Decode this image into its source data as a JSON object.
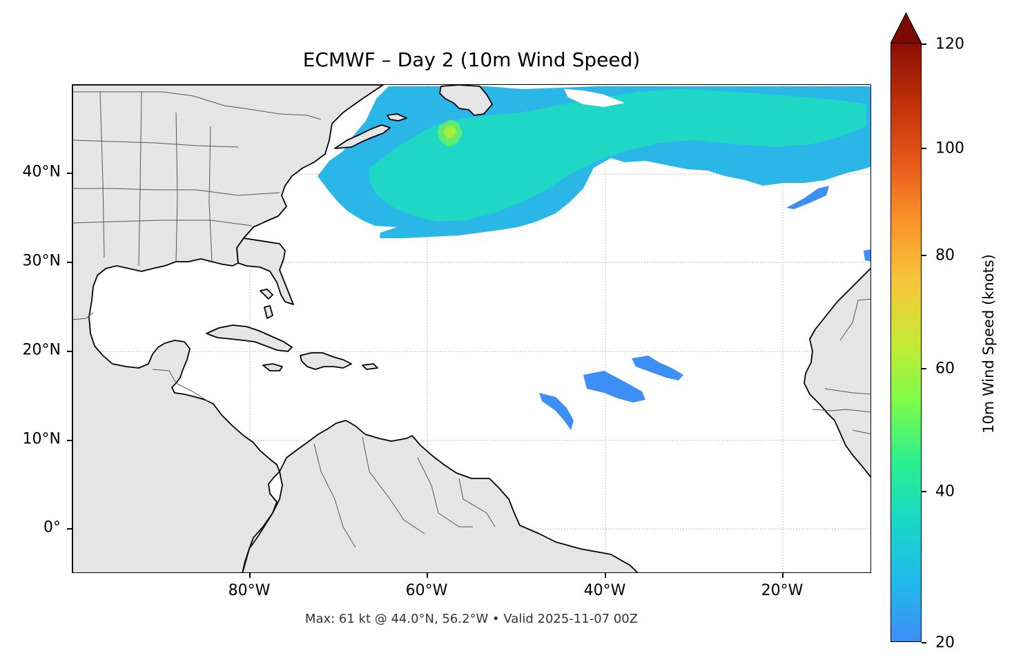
{
  "title": "ECMWF – Day 2 (10m Wind Speed)",
  "footer": "Max: 61 kt @ 44.0°N, 56.2°W • Valid 2025-11-07 00Z",
  "map": {
    "lon_range": [
      -100,
      -10
    ],
    "lat_range": [
      -5,
      50
    ],
    "land_color": "#e5e5e5",
    "ocean_color": "#ffffff",
    "gridlines": true,
    "lat_ticks": [
      {
        "value": 40,
        "label": "40°N"
      },
      {
        "value": 30,
        "label": "30°N"
      },
      {
        "value": 20,
        "label": "20°N"
      },
      {
        "value": 10,
        "label": "10°N"
      },
      {
        "value": 0,
        "label": "0°"
      }
    ],
    "lon_ticks": [
      {
        "value": -80,
        "label": "80°W"
      },
      {
        "value": -60,
        "label": "60°W"
      },
      {
        "value": -40,
        "label": "40°W"
      },
      {
        "value": -20,
        "label": "20°W"
      }
    ],
    "max_point": {
      "lat": 44.0,
      "lon": -56.2,
      "value": 61
    }
  },
  "colorbar": {
    "label": "10m Wind Speed (knots)",
    "min": 20,
    "max": 120,
    "extend": "max",
    "ticks": [
      {
        "value": 20,
        "label": "20"
      },
      {
        "value": 40,
        "label": "40"
      },
      {
        "value": 60,
        "label": "60"
      },
      {
        "value": 80,
        "label": "80"
      },
      {
        "value": 100,
        "label": "100"
      },
      {
        "value": 120,
        "label": "120"
      }
    ],
    "colors": [
      "#3d8ef5",
      "#19d7c8",
      "#7cfc4a",
      "#f6c63a",
      "#e8591a",
      "#8a1003"
    ]
  }
}
